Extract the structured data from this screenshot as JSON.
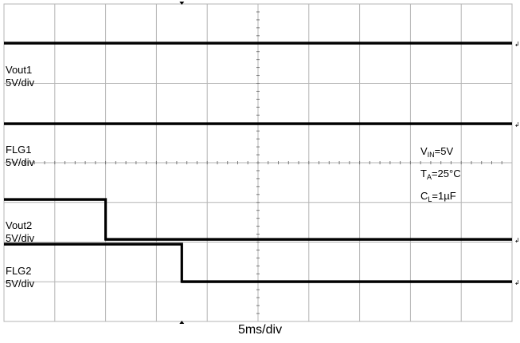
{
  "chart_data": {
    "type": "line",
    "title": "",
    "xlabel": "5ms/div",
    "ylabel": "",
    "x_unit": "ms",
    "xlim": [
      0,
      50
    ],
    "grid": true,
    "grid_divisions": {
      "x": 10,
      "y": 8
    },
    "channels": [
      {
        "name": "Vout1",
        "scale": "5V/div",
        "states": "high throughout",
        "x": [
          0,
          10,
          50
        ],
        "y": [
          5,
          5,
          5
        ]
      },
      {
        "name": "FLG1",
        "scale": "5V/div",
        "states": "high throughout",
        "x": [
          0,
          10,
          50
        ],
        "y": [
          5,
          5,
          5
        ]
      },
      {
        "name": "Vout2",
        "scale": "5V/div",
        "states": "high, falls at ~10 ms",
        "x": [
          0,
          10,
          10,
          50
        ],
        "y": [
          5,
          5,
          0,
          0
        ]
      },
      {
        "name": "FLG2",
        "scale": "5V/div",
        "states": "high, falls at ~17.5 ms",
        "x": [
          0,
          17.5,
          17.5,
          50
        ],
        "y": [
          5,
          5,
          0,
          0
        ]
      }
    ],
    "conditions": {
      "vin": {
        "main": "V",
        "sub": "IN",
        "rest": "=5V"
      },
      "ta": {
        "main": "T",
        "sub": "A",
        "rest": "=25°C"
      },
      "cl": {
        "main": "C",
        "sub": "L",
        "rest": "=1µF"
      }
    },
    "trace_color": "#000000",
    "grid_color": "#b4b4b4"
  }
}
